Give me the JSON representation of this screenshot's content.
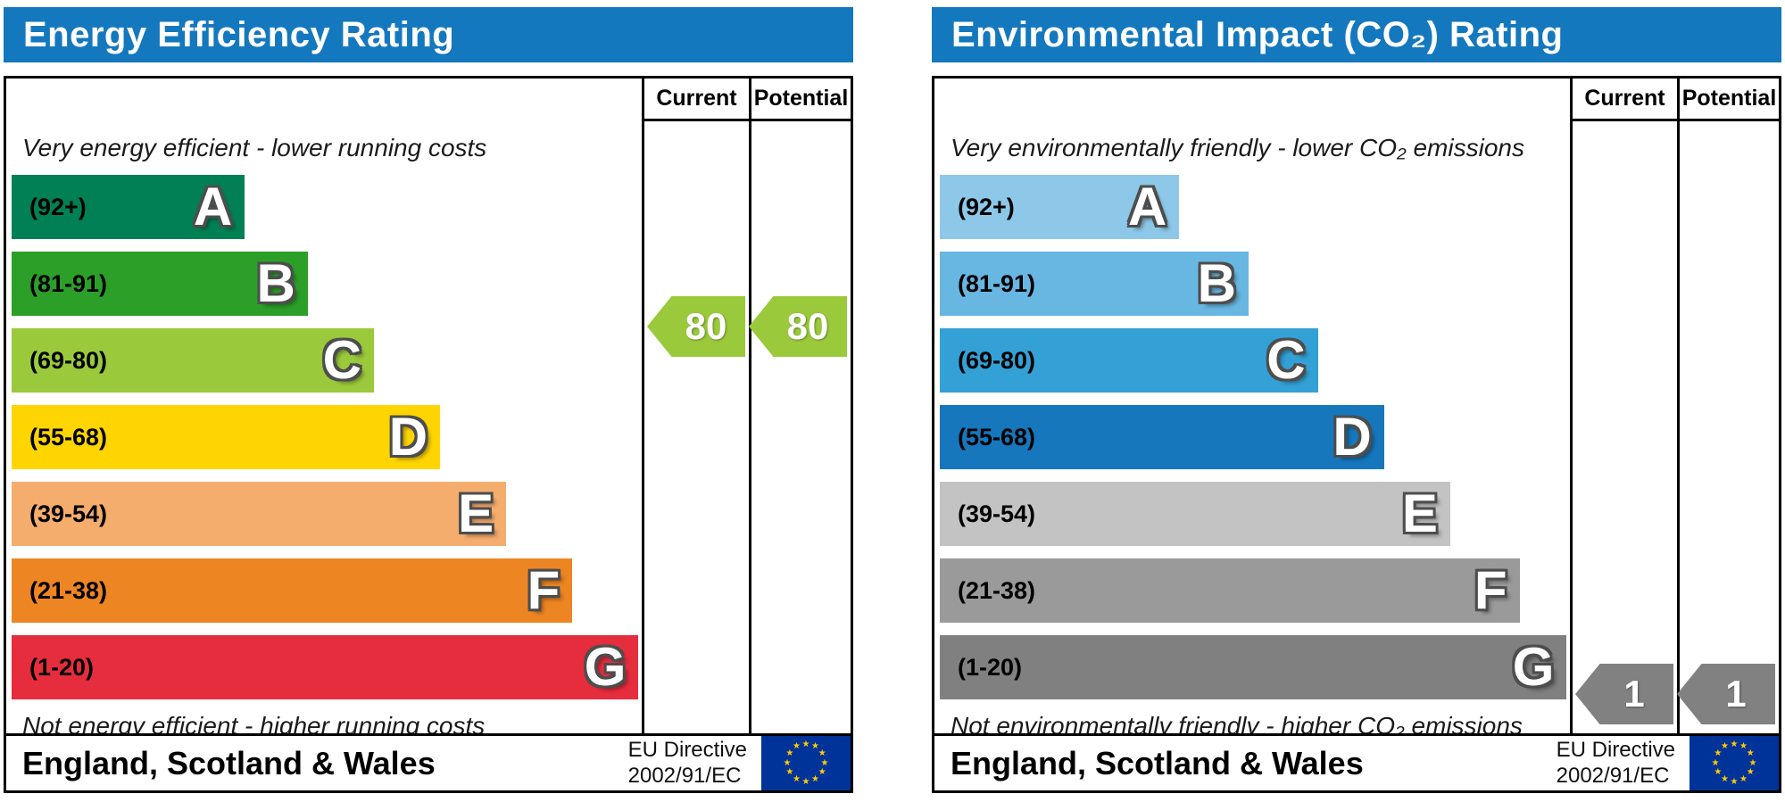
{
  "charts": [
    {
      "title": "Energy Efficiency Rating",
      "header_color": "#1478be",
      "columns": {
        "current": "Current",
        "potential": "Potential"
      },
      "top_note": "Very energy efficient - lower running costs",
      "bottom_note": "Not energy efficient - higher running costs",
      "bands": [
        {
          "letter": "A",
          "range": "(92+)",
          "color": "#008054",
          "width_pct": 37
        },
        {
          "letter": "B",
          "range": "(81-91)",
          "color": "#2c9f29",
          "width_pct": 47
        },
        {
          "letter": "C",
          "range": "(69-80)",
          "color": "#9aca3c",
          "width_pct": 57.5
        },
        {
          "letter": "D",
          "range": "(55-68)",
          "color": "#ffd500",
          "width_pct": 68
        },
        {
          "letter": "E",
          "range": "(39-54)",
          "color": "#f5ad6d",
          "width_pct": 78.5
        },
        {
          "letter": "F",
          "range": "(21-38)",
          "color": "#ee8523",
          "width_pct": 89
        },
        {
          "letter": "G",
          "range": "(1-20)",
          "color": "#e52d3d",
          "width_pct": 99.5
        }
      ],
      "current": {
        "value": "80",
        "band_index": 2,
        "color": "#9aca3c"
      },
      "potential": {
        "value": "80",
        "band_index": 2,
        "color": "#9aca3c"
      },
      "arrow_offset_y": -38,
      "footer": {
        "region": "England, Scotland & Wales",
        "directive_line1": "EU Directive",
        "directive_line2": "2002/91/EC"
      }
    },
    {
      "title": "Environmental Impact (CO₂) Rating",
      "header_color": "#1478be",
      "columns": {
        "current": "Current",
        "potential": "Potential"
      },
      "top_note": "Very environmentally friendly - lower CO₂ emissions",
      "bottom_note": "Not environmentally friendly - higher CO₂ emissions",
      "bands": [
        {
          "letter": "A",
          "range": "(92+)",
          "color": "#8dc8e8",
          "width_pct": 38
        },
        {
          "letter": "B",
          "range": "(81-91)",
          "color": "#68b6e2",
          "width_pct": 49
        },
        {
          "letter": "C",
          "range": "(69-80)",
          "color": "#33a1d6",
          "width_pct": 60
        },
        {
          "letter": "D",
          "range": "(55-68)",
          "color": "#1777bd",
          "width_pct": 70.5
        },
        {
          "letter": "E",
          "range": "(39-54)",
          "color": "#c3c3c3",
          "width_pct": 81
        },
        {
          "letter": "F",
          "range": "(21-38)",
          "color": "#9a9a9a",
          "width_pct": 92
        },
        {
          "letter": "G",
          "range": "(1-20)",
          "color": "#808080",
          "width_pct": 99.5
        }
      ],
      "current": {
        "value": "1",
        "band_index": 6,
        "color": "#818181"
      },
      "potential": {
        "value": "1",
        "band_index": 6,
        "color": "#818181"
      },
      "arrow_offset_y": 30,
      "footer": {
        "region": "England, Scotland & Wales",
        "directive_line1": "EU Directive",
        "directive_line2": "2002/91/EC"
      }
    }
  ],
  "chart_data": [
    {
      "type": "bar",
      "title": "Energy Efficiency Rating",
      "categories": [
        "A (92+)",
        "B (81-91)",
        "C (69-80)",
        "D (55-68)",
        "E (39-54)",
        "F (21-38)",
        "G (1-20)"
      ],
      "series": [
        {
          "name": "Current",
          "values": [
            80
          ],
          "band": "C"
        },
        {
          "name": "Potential",
          "values": [
            80
          ],
          "band": "C"
        }
      ],
      "value_range": [
        1,
        100
      ],
      "note_top": "Very energy efficient - lower running costs",
      "note_bottom": "Not energy efficient - higher running costs",
      "region": "England, Scotland & Wales",
      "directive": "EU Directive 2002/91/EC",
      "legend_position": "top-right-columns",
      "grid": false
    },
    {
      "type": "bar",
      "title": "Environmental Impact (CO₂) Rating",
      "categories": [
        "A (92+)",
        "B (81-91)",
        "C (69-80)",
        "D (55-68)",
        "E (39-54)",
        "F (21-38)",
        "G (1-20)"
      ],
      "series": [
        {
          "name": "Current",
          "values": [
            1
          ],
          "band": "G"
        },
        {
          "name": "Potential",
          "values": [
            1
          ],
          "band": "G"
        }
      ],
      "value_range": [
        1,
        100
      ],
      "note_top": "Very environmentally friendly - lower CO₂ emissions",
      "note_bottom": "Not environmentally friendly - higher CO₂ emissions",
      "region": "England, Scotland & Wales",
      "directive": "EU Directive 2002/91/EC",
      "legend_position": "top-right-columns",
      "grid": false
    }
  ]
}
